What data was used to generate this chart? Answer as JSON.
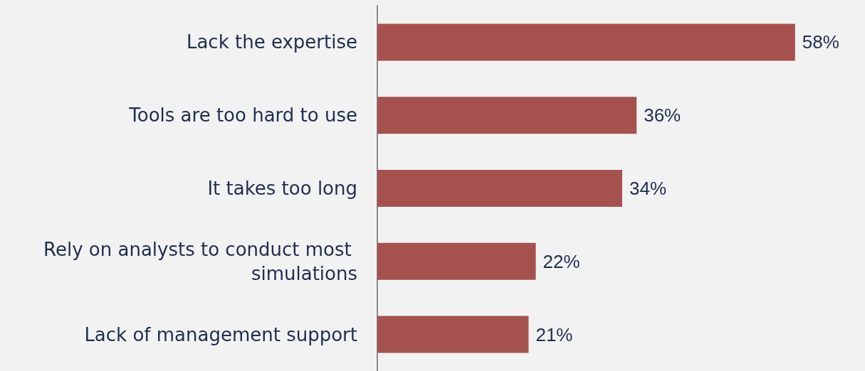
{
  "chart_data": {
    "type": "bar",
    "orientation": "horizontal",
    "categories": [
      "Lack the expertise",
      "Tools are too hard to use",
      "It takes too long",
      "Rely on analysts to conduct most simulations",
      "Lack of management support"
    ],
    "values": [
      58,
      36,
      34,
      22,
      21
    ],
    "value_labels": [
      "58%",
      "36%",
      "34%",
      "22%",
      "21%"
    ],
    "color": "#a5524f"
  }
}
